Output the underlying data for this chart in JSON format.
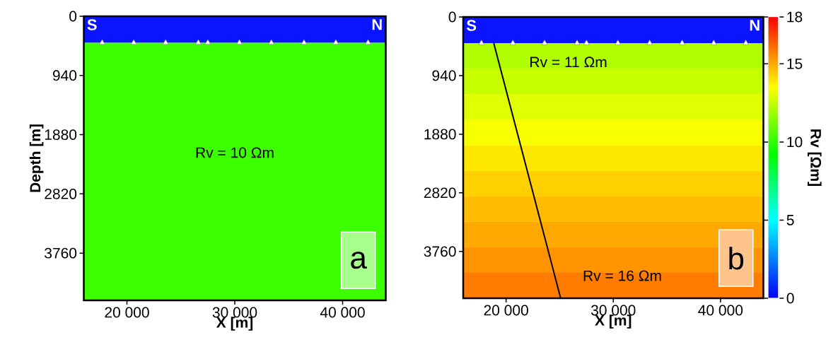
{
  "chart_data": [
    {
      "type": "scatter",
      "xlabel": "X [m]",
      "ylabel": "Depth [m]",
      "xlim": [
        16000,
        44000
      ],
      "ylim": [
        4510,
        0
      ],
      "xticks": [
        {
          "value": 20000,
          "label": "20 000"
        },
        {
          "value": 30000,
          "label": "30 000"
        },
        {
          "value": 40000,
          "label": "40 000"
        }
      ],
      "yticks": [
        0,
        940,
        1880,
        2820,
        3760
      ],
      "bands": [
        {
          "axis": "y",
          "from": 0,
          "to": 420,
          "color": "#0a14ff"
        },
        {
          "axis": "y",
          "from": 420,
          "to": 4510,
          "color": "#3cff00"
        }
      ],
      "series": [
        {
          "type": "scatter",
          "marker": "triangle",
          "color": "#ffffff",
          "x": [
            17700,
            20630,
            23590,
            26620,
            27500,
            30430,
            33390,
            36420,
            39370,
            42360
          ],
          "values": [
            420,
            420,
            420,
            420,
            420,
            420,
            420,
            420,
            420,
            420
          ]
        }
      ],
      "annotations": [
        "S",
        "N",
        "a",
        "Rv = 10 Ωm"
      ]
    },
    {
      "type": "scatter",
      "xlabel": "X [m]",
      "clabel": "Rv [Ωm]",
      "clim": [
        0,
        18
      ],
      "cticks": [
        0,
        5,
        10,
        15,
        18
      ],
      "xlim": [
        16000,
        44000
      ],
      "ylim": [
        4510,
        0
      ],
      "xticks": [
        {
          "value": 20000,
          "label": "20 000"
        },
        {
          "value": 30000,
          "label": "30 000"
        },
        {
          "value": 40000,
          "label": "40 000"
        }
      ],
      "yticks": [
        0,
        940,
        1880,
        2820,
        3760
      ],
      "bands": [
        {
          "axis": "y",
          "from": 0,
          "to": 420,
          "color": "#0a14ff"
        },
        {
          "axis": "y",
          "from": 420,
          "to": 829,
          "color": "#b0ff00"
        },
        {
          "axis": "y",
          "from": 829,
          "to": 1238,
          "color": "#c8ff00"
        },
        {
          "axis": "y",
          "from": 1238,
          "to": 1647,
          "color": "#e0ff00"
        },
        {
          "axis": "y",
          "from": 1647,
          "to": 2056,
          "color": "#f8ff00"
        },
        {
          "axis": "y",
          "from": 2056,
          "to": 2465,
          "color": "#ffe800"
        },
        {
          "axis": "y",
          "from": 2465,
          "to": 2874,
          "color": "#ffd000"
        },
        {
          "axis": "y",
          "from": 2874,
          "to": 3283,
          "color": "#ffbc00"
        },
        {
          "axis": "y",
          "from": 3283,
          "to": 3692,
          "color": "#ffa800"
        },
        {
          "axis": "y",
          "from": 3692,
          "to": 4101,
          "color": "#ff9400"
        },
        {
          "axis": "y",
          "from": 4101,
          "to": 4510,
          "color": "#ff7c00"
        }
      ],
      "series": [
        {
          "type": "scatter",
          "marker": "triangle",
          "color": "#ffffff",
          "x": [
            17700,
            20630,
            23590,
            26620,
            27500,
            30430,
            33390,
            36420,
            39370,
            42360
          ],
          "values": [
            420,
            420,
            420,
            420,
            420,
            420,
            420,
            420,
            420,
            420
          ]
        },
        {
          "type": "line",
          "color": "#000000",
          "x": [
            18850,
            25090
          ],
          "values": [
            420,
            4510
          ]
        }
      ],
      "annotations": [
        "S",
        "N",
        "b",
        "Rv = 11 Ωm",
        "Rv = 16 Ωm"
      ]
    }
  ]
}
